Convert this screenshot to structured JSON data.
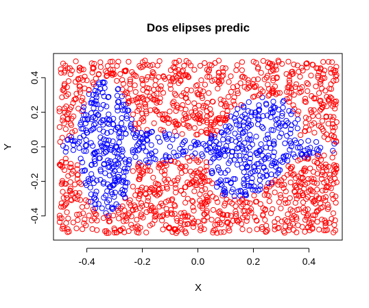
{
  "chart_data": {
    "type": "scatter",
    "title": "Dos elipses predic",
    "xlabel": "X",
    "ylabel": "Y",
    "xlim": [
      -0.52,
      0.52
    ],
    "ylim": [
      -0.54,
      0.54
    ],
    "x_ticks": [
      -0.4,
      -0.2,
      0.0,
      0.2,
      0.4
    ],
    "x_tick_labels": [
      "-0.4",
      "-0.2",
      "0.0",
      "0.2",
      "0.4"
    ],
    "y_ticks": [
      -0.4,
      -0.2,
      0.0,
      0.2,
      0.4
    ],
    "y_tick_labels": [
      "-0.4",
      "-0.2",
      "0.0",
      "0.2",
      "0.4"
    ],
    "point_range": {
      "x": [
        -0.5,
        0.5
      ],
      "y": [
        -0.5,
        0.5
      ]
    },
    "n_points": 2000,
    "ellipses": [
      {
        "center": [
          -0.25,
          0.0
        ],
        "semi_axis_x": 0.25,
        "semi_axis_y": 0.1,
        "angle_deg": 0
      },
      {
        "center": [
          0.2,
          0.0
        ],
        "semi_axis_x": 0.3,
        "semi_axis_y": 0.08,
        "angle_deg": 0
      },
      {
        "center": [
          -0.33,
          0.0
        ],
        "semi_axis_x": 0.1,
        "semi_axis_y": 0.4,
        "angle_deg": 0
      },
      {
        "center": [
          0.2,
          0.0
        ],
        "semi_axis_x": 0.15,
        "semi_axis_y": 0.3,
        "angle_deg": -15
      }
    ],
    "series": [
      {
        "class": "outside",
        "color": "#ff0000"
      },
      {
        "class": "inside",
        "color": "#0000ff"
      }
    ],
    "marker": "open-circle",
    "grid": false,
    "legend": "none"
  }
}
